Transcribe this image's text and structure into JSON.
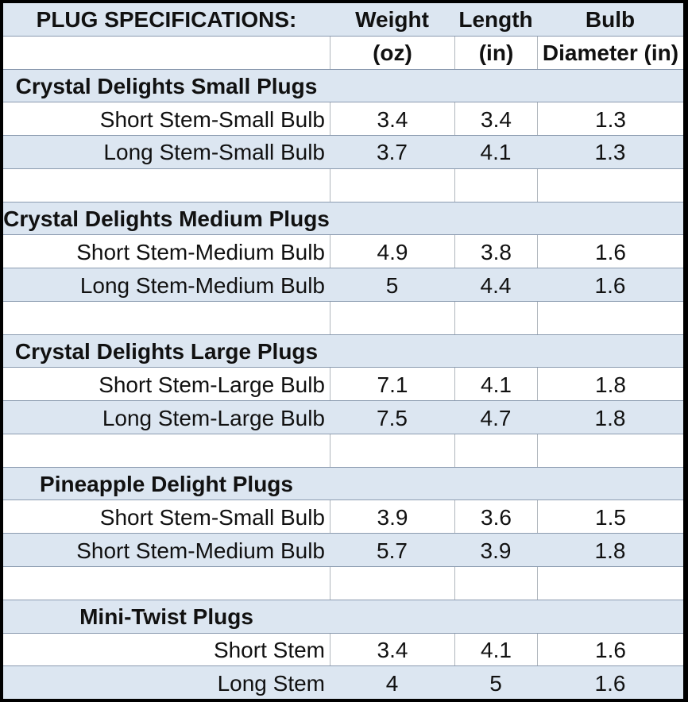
{
  "table": {
    "header_row": {
      "title": "PLUG SPECIFICATIONS:",
      "weight": "Weight",
      "length": "Length",
      "bulb": "Bulb"
    },
    "units_row": {
      "weight": "(oz)",
      "length": "(in)",
      "bulb": "Diameter (in)"
    },
    "sections": [
      {
        "title": "Crystal Delights Small Plugs",
        "rows": [
          {
            "label": "Short Stem-Small Bulb",
            "weight": "3.4",
            "length": "3.4",
            "bulb": "1.3"
          },
          {
            "label": "Long Stem-Small Bulb",
            "weight": "3.7",
            "length": "4.1",
            "bulb": "1.3"
          }
        ]
      },
      {
        "title": "Crystal Delights Medium Plugs",
        "rows": [
          {
            "label": "Short Stem-Medium Bulb",
            "weight": "4.9",
            "length": "3.8",
            "bulb": "1.6"
          },
          {
            "label": "Long Stem-Medium Bulb",
            "weight": "5",
            "length": "4.4",
            "bulb": "1.6"
          }
        ]
      },
      {
        "title": "Crystal Delights Large Plugs",
        "rows": [
          {
            "label": "Short Stem-Large Bulb",
            "weight": "7.1",
            "length": "4.1",
            "bulb": "1.8"
          },
          {
            "label": "Long Stem-Large Bulb",
            "weight": "7.5",
            "length": "4.7",
            "bulb": "1.8"
          }
        ]
      },
      {
        "title": "Pineapple Delight Plugs",
        "rows": [
          {
            "label": "Short Stem-Small Bulb",
            "weight": "3.9",
            "length": "3.6",
            "bulb": "1.5"
          },
          {
            "label": "Short Stem-Medium Bulb",
            "weight": "5.7",
            "length": "3.9",
            "bulb": "1.8"
          }
        ]
      },
      {
        "title": "Mini-Twist Plugs",
        "rows": [
          {
            "label": "Short Stem",
            "weight": "3.4",
            "length": "4.1",
            "bulb": "1.6"
          },
          {
            "label": "Long Stem",
            "weight": "4",
            "length": "5",
            "bulb": "1.6"
          }
        ]
      }
    ]
  },
  "colors": {
    "band_blue": "#dce6f1",
    "outer_border": "#000000",
    "row_line": "#8b9bb0",
    "column_line": "#b0b6bd",
    "text": "#111111"
  }
}
